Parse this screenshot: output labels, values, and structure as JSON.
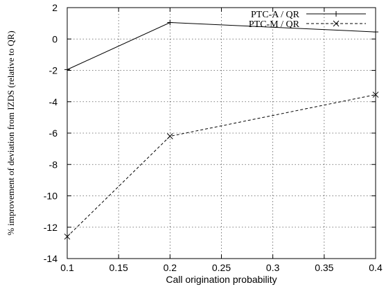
{
  "chart_data": {
    "type": "line",
    "title": "",
    "xlabel": "Call origination probability",
    "ylabel": "% improvement of deviation from IZDS (relative to QR)",
    "xlim": [
      0.1,
      0.4
    ],
    "ylim": [
      -14,
      2
    ],
    "xticks": [
      0.1,
      0.15,
      0.2,
      0.25,
      0.3,
      0.35,
      0.4
    ],
    "xtick_labels": [
      "0.1",
      "0.15",
      "0.2",
      "0.25",
      "0.3",
      "0.35",
      "0.4"
    ],
    "yticks": [
      -14,
      -12,
      -10,
      -8,
      -6,
      -4,
      -2,
      0,
      2
    ],
    "ytick_labels": [
      "-14",
      "-12",
      "-10",
      "-8",
      "-6",
      "-4",
      "-2",
      "0",
      "2"
    ],
    "grid": true,
    "legend_position": "top-right",
    "series": [
      {
        "name": "PTC-A / QR",
        "x": [
          0.1,
          0.2,
          0.4
        ],
        "values": [
          -1.95,
          1.05,
          0.45
        ],
        "line_style": "solid",
        "marker": "plus"
      },
      {
        "name": "PTC-M / QR",
        "x": [
          0.1,
          0.2,
          0.4
        ],
        "values": [
          -12.6,
          -6.2,
          -3.55
        ],
        "line_style": "dashed",
        "marker": "x"
      }
    ]
  }
}
